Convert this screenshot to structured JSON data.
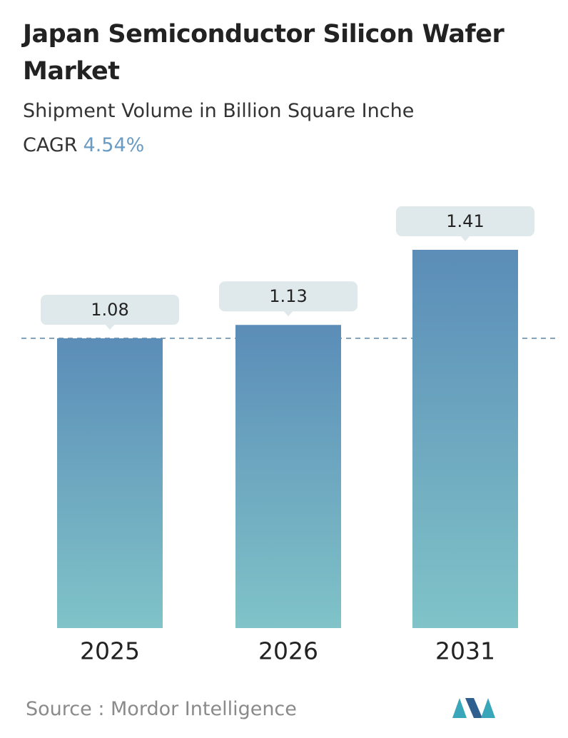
{
  "chart_data": {
    "type": "bar",
    "title": "Japan Semiconductor Silicon Wafer Market",
    "subtitle": "Shipment Volume in Billion Square Inche",
    "cagr_label": "CAGR",
    "cagr": "4.54%",
    "categories": [
      "2025",
      "2026",
      "2031"
    ],
    "values": [
      1.08,
      1.13,
      1.41
    ],
    "gradient": [
      "#5b8db8",
      "#80c3c8"
    ],
    "reference_line": true,
    "source_label": "Source :",
    "source": "Mordor Intelligence"
  }
}
